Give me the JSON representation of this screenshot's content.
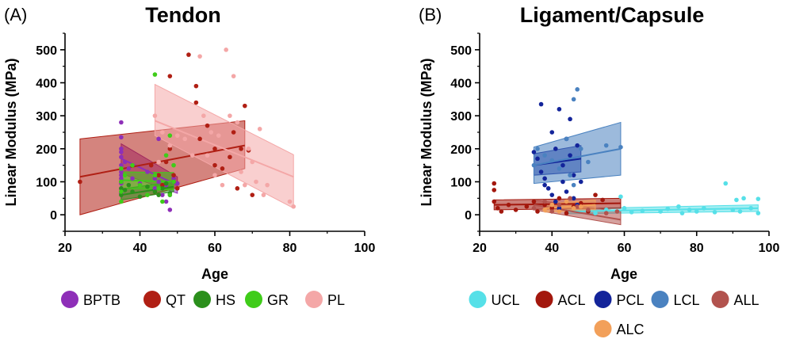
{
  "chart_data": [
    {
      "type": "scatter",
      "panel_label": "(A)",
      "title": "Tendon",
      "xlabel": "Age",
      "ylabel": "Linear Modulus (MPa)",
      "xlim": [
        20,
        100
      ],
      "ylim": [
        -50,
        550
      ],
      "xticks": [
        20,
        40,
        60,
        80,
        100
      ],
      "yticks": [
        0,
        100,
        200,
        300,
        400,
        500
      ],
      "legend_position": "bottom",
      "series": [
        {
          "name": "BPTB",
          "color": "#8e2fb8",
          "points": [
            [
              35,
              280
            ],
            [
              35,
              235
            ],
            [
              35,
              200
            ],
            [
              35,
              190
            ],
            [
              35,
              175
            ],
            [
              35,
              150
            ],
            [
              35,
              130
            ],
            [
              35,
              120
            ],
            [
              35,
              110
            ],
            [
              35,
              95
            ],
            [
              35,
              80
            ],
            [
              35,
              65
            ],
            [
              36,
              160
            ],
            [
              37,
              140
            ],
            [
              38,
              110
            ],
            [
              40,
              95
            ],
            [
              42,
              130
            ],
            [
              44,
              110
            ],
            [
              44,
              80
            ],
            [
              45,
              230
            ],
            [
              45,
              100
            ],
            [
              46,
              60
            ],
            [
              47,
              90
            ],
            [
              47,
              40
            ],
            [
              48,
              60
            ],
            [
              48,
              15
            ],
            [
              49,
              110
            ],
            [
              50,
              95
            ]
          ],
          "fit": {
            "x": [
              35,
              50
            ],
            "y": [
              170,
              90
            ],
            "ci_lower": [
              125,
              65
            ],
            "ci_upper": [
              215,
              115
            ]
          }
        },
        {
          "name": "QT",
          "color": "#b01f14",
          "points": [
            [
              24,
              100
            ],
            [
              43,
              150
            ],
            [
              45,
              120
            ],
            [
              46,
              90
            ],
            [
              47,
              160
            ],
            [
              48,
              420
            ],
            [
              48,
              200
            ],
            [
              49,
              120
            ],
            [
              50,
              80
            ],
            [
              53,
              485
            ],
            [
              55,
              390
            ],
            [
              55,
              340
            ],
            [
              56,
              230
            ],
            [
              58,
              270
            ],
            [
              60,
              200
            ],
            [
              60,
              150
            ],
            [
              62,
              140
            ],
            [
              64,
              175
            ],
            [
              65,
              250
            ],
            [
              66,
              80
            ],
            [
              67,
              200
            ],
            [
              68,
              330
            ],
            [
              69,
              195
            ],
            [
              70,
              60
            ]
          ],
          "fit": {
            "x": [
              24,
              68
            ],
            "y": [
              115,
              210
            ],
            "ci_lower": [
              0,
              140
            ],
            "ci_upper": [
              230,
              285
            ]
          }
        },
        {
          "name": "HS",
          "color": "#2b8f1c",
          "points": [
            [
              35,
              100
            ],
            [
              35,
              80
            ],
            [
              35,
              60
            ],
            [
              36,
              75
            ],
            [
              37,
              90
            ],
            [
              38,
              70
            ],
            [
              40,
              55
            ],
            [
              42,
              85
            ],
            [
              44,
              70
            ],
            [
              45,
              60
            ],
            [
              46,
              80
            ],
            [
              47,
              95
            ],
            [
              48,
              65
            ],
            [
              49,
              100
            ]
          ],
          "fit": {
            "x": [
              35,
              49
            ],
            "y": [
              60,
              85
            ],
            "ci_lower": [
              45,
              70
            ],
            "ci_upper": [
              78,
              100
            ]
          }
        },
        {
          "name": "GR",
          "color": "#3fcc19",
          "points": [
            [
              35,
              140
            ],
            [
              35,
              100
            ],
            [
              35,
              70
            ],
            [
              35,
              40
            ],
            [
              36,
              120
            ],
            [
              38,
              150
            ],
            [
              40,
              90
            ],
            [
              42,
              60
            ],
            [
              44,
              425
            ],
            [
              44,
              120
            ],
            [
              45,
              80
            ],
            [
              46,
              40
            ],
            [
              47,
              180
            ],
            [
              48,
              240
            ],
            [
              48,
              60
            ],
            [
              49,
              150
            ],
            [
              49,
              100
            ]
          ],
          "fit": {
            "x": [
              35,
              49
            ],
            "y": [
              105,
              100
            ],
            "ci_lower": [
              80,
              75
            ],
            "ci_upper": [
              130,
              128
            ]
          }
        },
        {
          "name": "PL",
          "color": "#f4a7a7",
          "points": [
            [
              44,
              300
            ],
            [
              45,
              160
            ],
            [
              46,
              250
            ],
            [
              48,
              210
            ],
            [
              50,
              240
            ],
            [
              52,
              230
            ],
            [
              54,
              180
            ],
            [
              56,
              480
            ],
            [
              57,
              300
            ],
            [
              58,
              180
            ],
            [
              59,
              250
            ],
            [
              60,
              120
            ],
            [
              61,
              240
            ],
            [
              62,
              90
            ],
            [
              63,
              500
            ],
            [
              64,
              300
            ],
            [
              65,
              420
            ],
            [
              66,
              280
            ],
            [
              67,
              130
            ],
            [
              68,
              90
            ],
            [
              69,
              200
            ],
            [
              70,
              160
            ],
            [
              71,
              100
            ],
            [
              72,
              260
            ],
            [
              73,
              60
            ],
            [
              74,
              90
            ],
            [
              80,
              40
            ],
            [
              81,
              25
            ]
          ],
          "fit": {
            "x": [
              44,
              81
            ],
            "y": [
              285,
              115
            ],
            "ci_lower": [
              240,
              20
            ],
            "ci_upper": [
              395,
              182
            ]
          }
        }
      ]
    },
    {
      "type": "scatter",
      "panel_label": "(B)",
      "title": "Ligament/Capsule",
      "xlabel": "Age",
      "ylabel": "Linear Modulus (MPa)",
      "xlim": [
        20,
        100
      ],
      "ylim": [
        -50,
        550
      ],
      "xticks": [
        20,
        40,
        60,
        80,
        100
      ],
      "yticks": [
        0,
        100,
        200,
        300,
        400,
        500
      ],
      "legend_position": "bottom",
      "series": [
        {
          "name": "UCL",
          "color": "#56e0e8",
          "points": [
            [
              50,
              10
            ],
            [
              52,
              5
            ],
            [
              55,
              15
            ],
            [
              59,
              55
            ],
            [
              60,
              20
            ],
            [
              62,
              8
            ],
            [
              65,
              12
            ],
            [
              70,
              10
            ],
            [
              72,
              18
            ],
            [
              75,
              25
            ],
            [
              76,
              5
            ],
            [
              78,
              15
            ],
            [
              80,
              10
            ],
            [
              82,
              20
            ],
            [
              85,
              8
            ],
            [
              88,
              95
            ],
            [
              90,
              15
            ],
            [
              91,
              45
            ],
            [
              92,
              10
            ],
            [
              93,
              50
            ],
            [
              95,
              20
            ],
            [
              97,
              48
            ],
            [
              97,
              5
            ]
          ],
          "fit": {
            "x": [
              44,
              97
            ],
            "y": [
              10,
              20
            ],
            "ci_lower": [
              3,
              10
            ],
            "ci_upper": [
              18,
              30
            ]
          }
        },
        {
          "name": "ACL",
          "color": "#a3170d",
          "points": [
            [
              24,
              95
            ],
            [
              24,
              75
            ],
            [
              24,
              40
            ],
            [
              25,
              20
            ],
            [
              26,
              10
            ],
            [
              28,
              30
            ],
            [
              30,
              15
            ],
            [
              33,
              25
            ],
            [
              35,
              40
            ],
            [
              36,
              10
            ],
            [
              38,
              30
            ],
            [
              40,
              20
            ],
            [
              42,
              50
            ],
            [
              44,
              5
            ],
            [
              46,
              25
            ],
            [
              48,
              35
            ],
            [
              50,
              10
            ],
            [
              52,
              60
            ],
            [
              54,
              45
            ]
          ],
          "fit": {
            "x": [
              24,
              59
            ],
            "y": [
              30,
              35
            ],
            "ci_lower": [
              15,
              20
            ],
            "ci_upper": [
              45,
              50
            ]
          }
        },
        {
          "name": "PCL",
          "color": "#13249a",
          "points": [
            [
              35,
              190
            ],
            [
              36,
              170
            ],
            [
              37,
              335
            ],
            [
              37,
              130
            ],
            [
              38,
              110
            ],
            [
              38,
              90
            ],
            [
              39,
              80
            ],
            [
              40,
              250
            ],
            [
              40,
              60
            ],
            [
              41,
              200
            ],
            [
              41,
              40
            ],
            [
              42,
              320
            ],
            [
              42,
              20
            ],
            [
              43,
              150
            ],
            [
              43,
              100
            ],
            [
              44,
              230
            ],
            [
              44,
              70
            ],
            [
              45,
              290
            ],
            [
              45,
              180
            ],
            [
              46,
              120
            ],
            [
              46,
              50
            ],
            [
              47,
              210
            ],
            [
              47,
              30
            ],
            [
              48,
              100
            ]
          ],
          "fit": {
            "x": [
              35,
              48
            ],
            "y": [
              150,
              170
            ],
            "ci_lower": [
              120,
              130
            ],
            "ci_upper": [
              185,
              210
            ]
          }
        },
        {
          "name": "LCL",
          "color": "#4a82c0",
          "points": [
            [
              35,
              150
            ],
            [
              36,
              200
            ],
            [
              38,
              180
            ],
            [
              40,
              165
            ],
            [
              42,
              140
            ],
            [
              44,
              230
            ],
            [
              45,
              120
            ],
            [
              46,
              90
            ],
            [
              46,
              350
            ],
            [
              47,
              380
            ],
            [
              48,
              200
            ],
            [
              50,
              160
            ],
            [
              55,
              210
            ],
            [
              59,
              205
            ]
          ],
          "fit": {
            "x": [
              35,
              59
            ],
            "y": [
              150,
              200
            ],
            "ci_lower": [
              95,
              120
            ],
            "ci_upper": [
              205,
              280
            ]
          }
        },
        {
          "name": "ALL",
          "color": "#b2534e",
          "points": [
            [
              35,
              20
            ],
            [
              38,
              40
            ],
            [
              40,
              10
            ],
            [
              42,
              30
            ],
            [
              45,
              50
            ],
            [
              47,
              25
            ],
            [
              50,
              15
            ],
            [
              55,
              5
            ],
            [
              58,
              10
            ]
          ],
          "fit": {
            "x": [
              35,
              59
            ],
            "y": [
              30,
              -15
            ],
            "ci_lower": [
              15,
              -30
            ],
            "ci_upper": [
              45,
              10
            ]
          }
        },
        {
          "name": "ALC",
          "color": "#f2a05a",
          "points": [
            [
              38,
              15
            ],
            [
              40,
              30
            ],
            [
              42,
              10
            ],
            [
              44,
              40
            ],
            [
              46,
              20
            ],
            [
              48,
              25
            ]
          ],
          "fit": {
            "x": [
              38,
              52
            ],
            "y": [
              20,
              30
            ],
            "ci_lower": [
              8,
              15
            ],
            "ci_upper": [
              32,
              45
            ]
          }
        }
      ]
    }
  ]
}
